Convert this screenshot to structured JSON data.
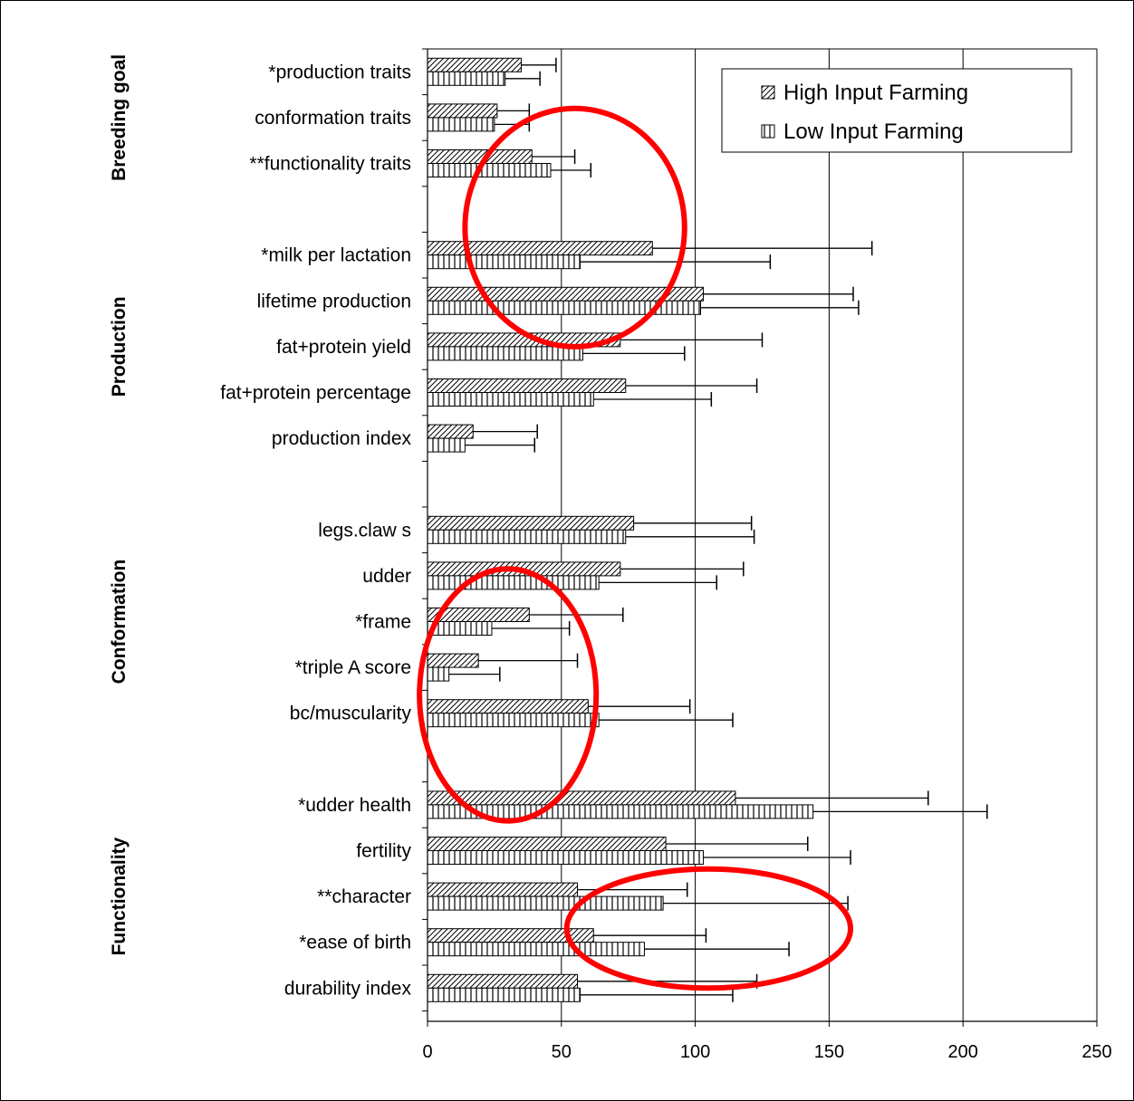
{
  "chart_data": {
    "type": "bar",
    "orientation": "horizontal",
    "title": "",
    "xlabel": "",
    "ylabel": "",
    "xlim": [
      0,
      250
    ],
    "xticks": [
      0,
      50,
      100,
      150,
      200,
      250
    ],
    "grid": true,
    "legend": {
      "placement": "top-right",
      "entries": [
        "High Input Farming",
        "Low Input Farming"
      ]
    },
    "categories": [
      "*production traits",
      "conformation traits",
      "**functionality traits",
      "*milk per lactation",
      "lifetime production",
      "fat+protein yield",
      "fat+protein percentage",
      "production index",
      "legs.claw s",
      "udder",
      "*frame",
      "*triple A score",
      "bc/muscularity",
      "*udder health",
      "fertility",
      "**character",
      "*ease of birth",
      "durability index"
    ],
    "category_groups": [
      0,
      0,
      0,
      1,
      1,
      1,
      1,
      1,
      2,
      2,
      2,
      2,
      2,
      3,
      3,
      3,
      3,
      3
    ],
    "groups": [
      "Breeding goal",
      "Production",
      "Conformation",
      "Functionality"
    ],
    "series": [
      {
        "name": "High Input Farming",
        "color": "#ffffff",
        "pattern": "diagonal",
        "values": [
          35,
          26,
          39,
          84,
          103,
          72,
          74,
          17,
          77,
          72,
          38,
          19,
          60,
          115,
          89,
          56,
          62,
          56
        ],
        "errors": [
          13,
          12,
          16,
          82,
          56,
          53,
          49,
          24,
          44,
          46,
          35,
          37,
          38,
          72,
          53,
          41,
          42,
          67
        ]
      },
      {
        "name": "Low Input Farming",
        "color": "#ffffff",
        "pattern": "vertical",
        "values": [
          29,
          25,
          46,
          57,
          102,
          58,
          62,
          14,
          74,
          64,
          24,
          8,
          64,
          144,
          103,
          88,
          81,
          57
        ],
        "errors": [
          13,
          13,
          15,
          71,
          59,
          38,
          44,
          26,
          48,
          44,
          29,
          19,
          50,
          65,
          55,
          69,
          54,
          57
        ]
      }
    ],
    "annotations": [
      {
        "type": "ellipse",
        "color": "#ff0000",
        "center": [
          55,
          2.7
        ],
        "radius_x": 41,
        "radius_y": 2.3
      },
      {
        "type": "ellipse",
        "color": "#ff0000",
        "center": [
          30,
          11.6
        ],
        "radius_x": 33,
        "radius_y": 1.75
      },
      {
        "type": "ellipse",
        "color": "#ff0000",
        "center": [
          105,
          15.7
        ],
        "radius_x": 53,
        "radius_y": 3.0
      }
    ]
  }
}
